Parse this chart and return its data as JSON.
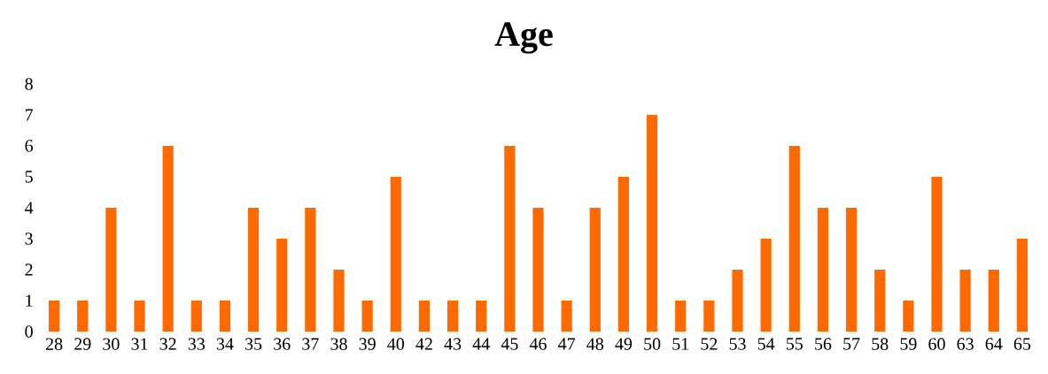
{
  "chart_data": {
    "type": "bar",
    "title": "Age",
    "categories": [
      "28",
      "29",
      "30",
      "31",
      "32",
      "33",
      "34",
      "35",
      "36",
      "37",
      "38",
      "39",
      "40",
      "42",
      "43",
      "44",
      "45",
      "46",
      "47",
      "48",
      "49",
      "50",
      "51",
      "52",
      "53",
      "54",
      "55",
      "56",
      "57",
      "58",
      "59",
      "60",
      "63",
      "64",
      "65"
    ],
    "values": [
      1,
      1,
      4,
      1,
      6,
      1,
      1,
      4,
      3,
      4,
      2,
      1,
      5,
      1,
      1,
      1,
      6,
      4,
      1,
      4,
      5,
      7,
      1,
      1,
      2,
      3,
      6,
      4,
      4,
      2,
      1,
      5,
      2,
      2,
      3
    ],
    "color": "#ff6a00",
    "ylim": [
      0,
      8
    ],
    "yticks": [
      0,
      1,
      2,
      3,
      4,
      5,
      6,
      7,
      8
    ]
  }
}
